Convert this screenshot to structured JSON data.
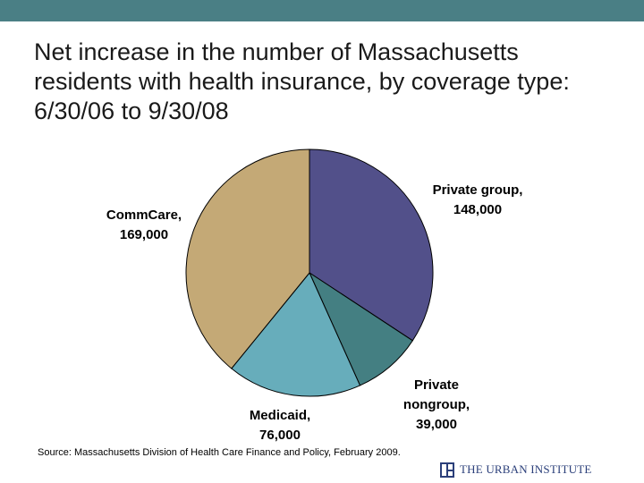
{
  "title_lines": [
    "Net increase in the number of Massachusetts",
    "residents with health insurance, by coverage type:",
    "6/30/06 to 9/30/08"
  ],
  "chart_data": {
    "type": "pie",
    "title": "Net increase in the number of Massachusetts residents with health insurance, by coverage type: 6/30/06 to 9/30/08",
    "start_angle_deg": 0,
    "direction": "clockwise",
    "slices": [
      {
        "label_lines": [
          "Private group,",
          "148,000"
        ],
        "category": "Private group",
        "value": 148000,
        "color": "#52508a"
      },
      {
        "label_lines": [
          "Private",
          "nongroup,",
          "39,000"
        ],
        "category": "Private nongroup",
        "value": 39000,
        "color": "#447f82"
      },
      {
        "label_lines": [
          "Medicaid,",
          "76,000"
        ],
        "category": "Medicaid",
        "value": 76000,
        "color": "#67adbb"
      },
      {
        "label_lines": [
          "CommCare,",
          "169,000"
        ],
        "category": "CommCare",
        "value": 169000,
        "color": "#c4a976"
      }
    ]
  },
  "source": "Source: Massachusetts Division of Health Care Finance and Policy, February 2009.",
  "logo": {
    "text": "THE URBAN INSTITUTE",
    "icon": "urban-institute-logo-icon"
  },
  "colors": {
    "top_bar": "#4a7f85",
    "logo_text": "#2b3f7a"
  }
}
